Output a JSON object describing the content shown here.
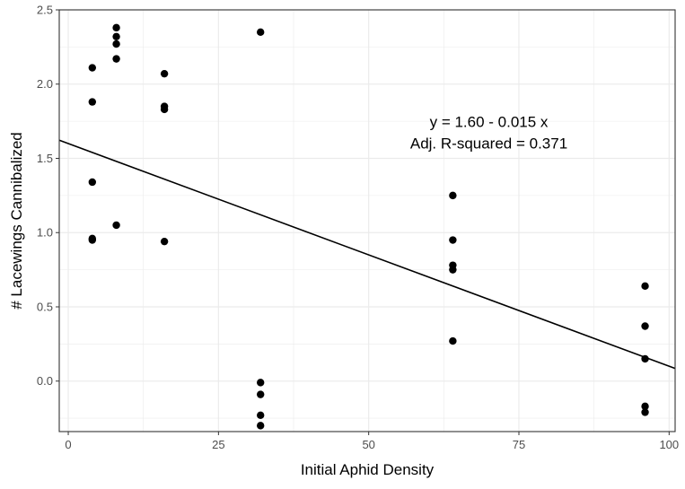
{
  "chart_data": {
    "type": "scatter",
    "xlabel": "Initial Aphid Density",
    "ylabel": "# Lacewings Cannibalized",
    "xlim": [
      -1.5,
      101
    ],
    "ylim": [
      -0.34,
      2.5
    ],
    "x_ticks": [
      0,
      25,
      50,
      75,
      100
    ],
    "y_ticks": [
      0.0,
      0.5,
      1.0,
      1.5,
      2.0,
      2.5
    ],
    "x_tick_labels": [
      "0",
      "25",
      "50",
      "75",
      "100"
    ],
    "y_tick_labels": [
      "0.0",
      "0.5",
      "1.0",
      "1.5",
      "2.0",
      "2.5"
    ],
    "grid": true,
    "points": [
      {
        "x": 4,
        "y": 2.11
      },
      {
        "x": 4,
        "y": 1.88
      },
      {
        "x": 4,
        "y": 1.34
      },
      {
        "x": 4,
        "y": 0.96
      },
      {
        "x": 4,
        "y": 0.95
      },
      {
        "x": 8,
        "y": 2.38
      },
      {
        "x": 8,
        "y": 2.32
      },
      {
        "x": 8,
        "y": 2.27
      },
      {
        "x": 8,
        "y": 2.17
      },
      {
        "x": 8,
        "y": 1.05
      },
      {
        "x": 16,
        "y": 2.07
      },
      {
        "x": 16,
        "y": 1.85
      },
      {
        "x": 16,
        "y": 1.83
      },
      {
        "x": 16,
        "y": 0.94
      },
      {
        "x": 32,
        "y": 2.35
      },
      {
        "x": 32,
        "y": -0.01
      },
      {
        "x": 32,
        "y": -0.09
      },
      {
        "x": 32,
        "y": -0.23
      },
      {
        "x": 32,
        "y": -0.3
      },
      {
        "x": 64,
        "y": 1.25
      },
      {
        "x": 64,
        "y": 0.95
      },
      {
        "x": 64,
        "y": 0.78
      },
      {
        "x": 64,
        "y": 0.75
      },
      {
        "x": 64,
        "y": 0.27
      },
      {
        "x": 96,
        "y": 0.64
      },
      {
        "x": 96,
        "y": 0.37
      },
      {
        "x": 96,
        "y": 0.15
      },
      {
        "x": 96,
        "y": -0.17
      },
      {
        "x": 96,
        "y": -0.21
      }
    ],
    "fit_line": {
      "intercept": 1.6,
      "slope": -0.015
    },
    "annotation": {
      "line1": "y = 1.60 - 0.015 x",
      "line2": "Adj. R-squared = 0.371",
      "x": 70,
      "y": 1.58
    },
    "colors": {
      "point": "#000000",
      "line": "#000000",
      "grid": "#ebebeb",
      "panel_border": "#333333",
      "background": "#ffffff"
    }
  }
}
